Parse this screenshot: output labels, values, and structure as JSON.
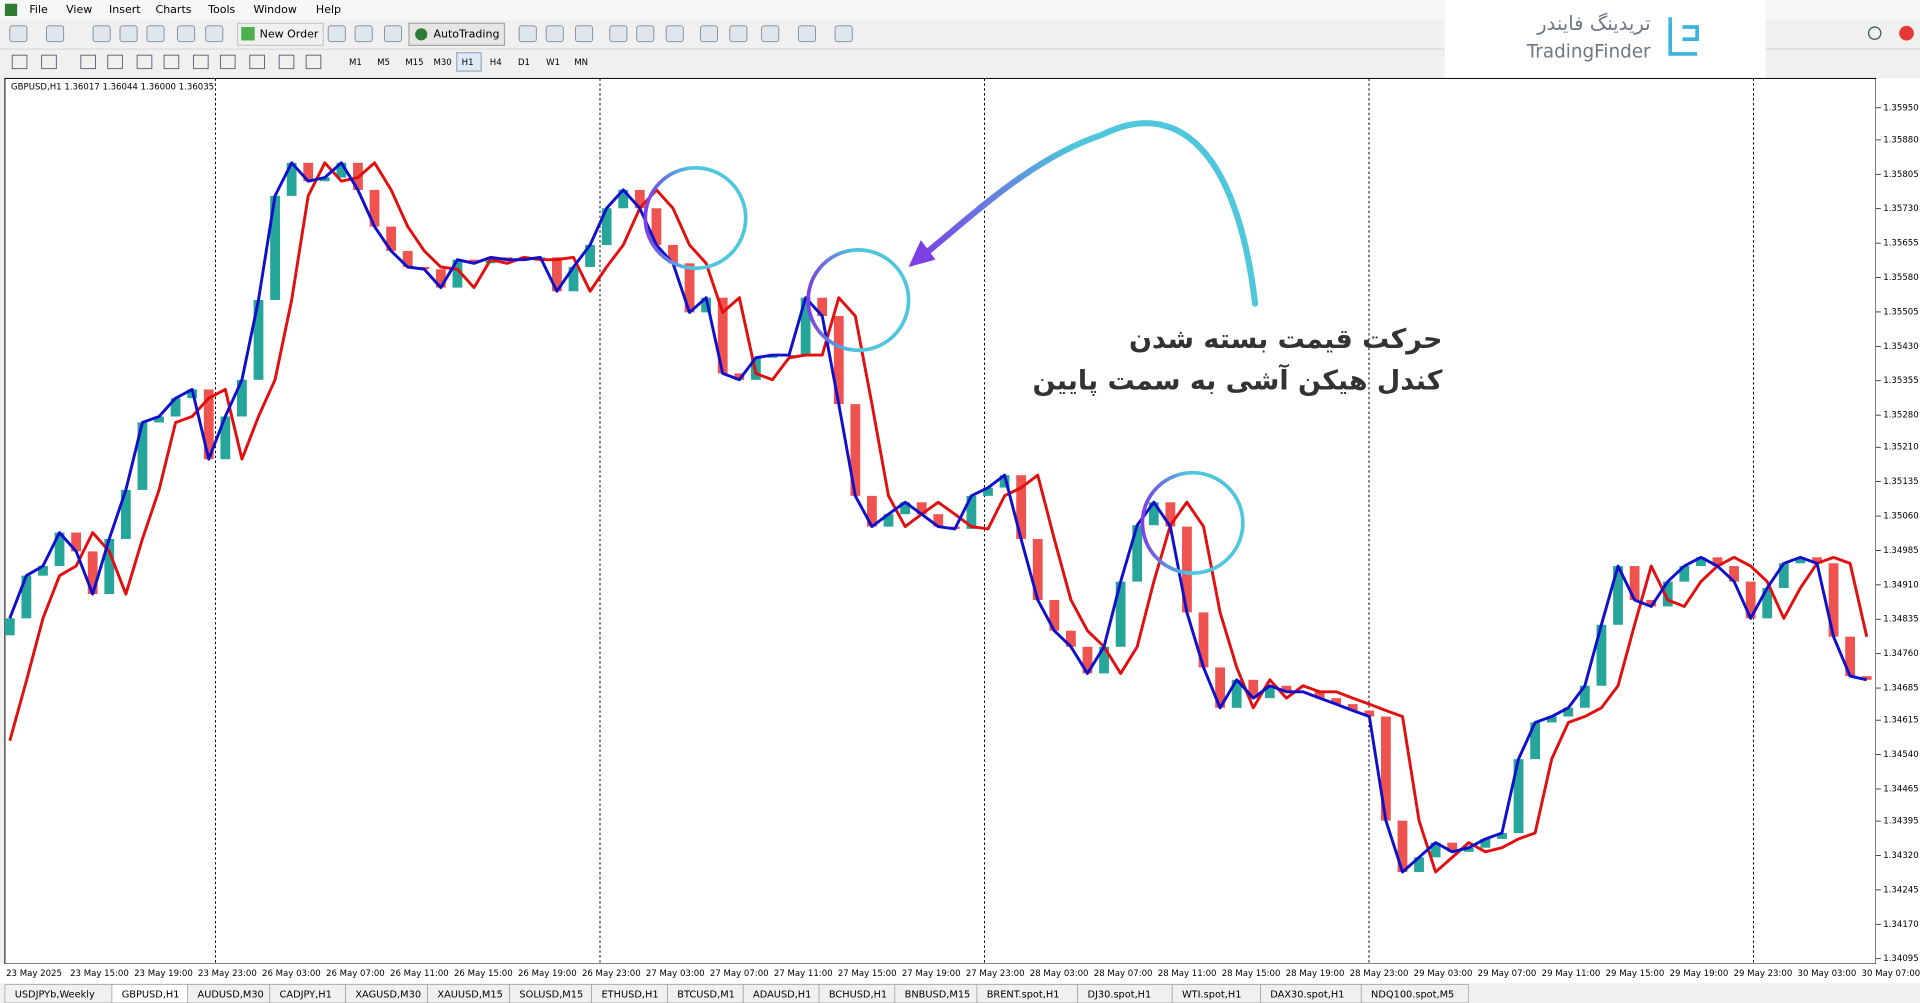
{
  "menu": [
    "File",
    "View",
    "Insert",
    "Charts",
    "Tools",
    "Window",
    "Help"
  ],
  "toolbar": {
    "new_order": "New Order",
    "auto_trading": "AutoTrading"
  },
  "timeframes": [
    "M1",
    "M5",
    "M15",
    "M30",
    "H1",
    "H4",
    "D1",
    "W1",
    "MN"
  ],
  "logo": {
    "persian": "تریدینگ فایندر",
    "latin": "TradingFinder"
  },
  "annotation": [
    "حرکت قیمت بسته شدن",
    "کندل هیکن آشی به سمت پایین"
  ],
  "tabs": [
    "USDJPYb,Weekly",
    "GBPUSD,H1",
    "AUDUSD,M30",
    "CADJPY,H1",
    "XAGUSD,M30",
    "XAUUSD,M15",
    "SOLUSD,M15",
    "ETHUSD,H1",
    "BTCUSD,M1",
    "ADAUSD,H1",
    "BCHUSD,H1",
    "BNBUSD,M15",
    "BRENT.spot,H1",
    "DJ30.spot,H1",
    "WTI.spot,H1",
    "DAX30.spot,H1",
    "NDQ100.spot,M5"
  ],
  "active_tab": "GBPUSD,H1",
  "chart_data": {
    "type": "candlestick",
    "title": "GBPUSD,H1  1.36017 1.36044 1.36000 1.36035",
    "time_labels": [
      "23 May 2025",
      "23 May 15:00",
      "23 May 19:00",
      "23 May 23:00",
      "26 May 03:00",
      "26 May 07:00",
      "26 May 11:00",
      "26 May 15:00",
      "26 May 19:00",
      "26 May 23:00",
      "27 May 03:00",
      "27 May 07:00",
      "27 May 11:00",
      "27 May 15:00",
      "27 May 19:00",
      "27 May 23:00",
      "28 May 03:00",
      "28 May 07:00",
      "28 May 11:00",
      "28 May 15:00",
      "28 May 19:00",
      "28 May 23:00",
      "29 May 03:00",
      "29 May 07:00",
      "29 May 11:00",
      "29 May 15:00",
      "29 May 19:00",
      "29 May 23:00",
      "30 May 03:00",
      "30 May 07:00"
    ],
    "up_color": "#26a69a",
    "down_color": "#ef5350",
    "close_line_color": "#1010cc",
    "ma_color": "#e01010",
    "ylim": [
      1.34084,
      1.36014
    ],
    "yticks": [
      {
        "value": 1.3595,
        "label": "1.35950"
      },
      {
        "value": 1.3588,
        "label": "1.35880"
      },
      1.35805,
      {
        "value": 1.3573,
        "label": "1.35730"
      },
      1.35655,
      {
        "value": 1.3558,
        "label": "1.35580"
      },
      1.35505,
      {
        "value": 1.3543,
        "label": "1.35430"
      },
      1.35355,
      {
        "value": 1.3528,
        "label": "1.35280"
      },
      {
        "value": 1.3521,
        "label": "1.35210"
      },
      1.35135,
      {
        "value": 1.3506,
        "label": "1.35060"
      },
      1.34985,
      {
        "value": 1.3491,
        "label": "1.34910"
      },
      1.34835,
      {
        "value": 1.3476,
        "label": "1.34760"
      },
      1.34685,
      1.34615,
      {
        "value": 1.3454,
        "label": "1.34540"
      },
      1.34465,
      1.34395,
      {
        "value": 1.3432,
        "label": "1.34320"
      },
      1.34245,
      {
        "value": 1.3417,
        "label": "1.34170"
      },
      1.34095
    ],
    "open": [
      1.348,
      1.34837,
      1.3493,
      1.34951,
      1.35024,
      1.34983,
      1.3489,
      1.3501,
      1.35117,
      1.35264,
      1.35277,
      1.35317,
      1.35336,
      1.35184,
      1.35277,
      1.35357,
      1.35531,
      1.35758,
      1.3583,
      1.3579,
      1.35798,
      1.3583,
      1.35771,
      1.35691,
      1.35638,
      1.35603,
      1.35598,
      1.35558,
      1.35619,
      1.35611,
      1.35624,
      1.35619,
      1.35619,
      1.35624,
      1.3555,
      1.35603,
      1.35651,
      1.35731,
      1.35771,
      1.35731,
      1.35651,
      1.35611,
      1.35504,
      1.35536,
      1.35371,
      1.35357,
      1.35405,
      1.35411,
      1.35411,
      1.35536,
      1.35496,
      1.35304,
      1.35104,
      1.35037,
      1.35064,
      1.3509,
      1.35064,
      1.35037,
      1.35032,
      1.35104,
      1.35122,
      1.35149,
      1.3501,
      1.34877,
      1.3481,
      1.34775,
      1.34717,
      1.34775,
      1.34917,
      1.3504,
      1.3509,
      1.35037,
      1.3485,
      1.3473,
      1.34642,
      1.34703,
      1.34663,
      1.3469,
      1.34677,
      1.34677,
      1.34663,
      1.3465,
      1.34636,
      1.34623,
      1.34396,
      1.34284,
      1.34316,
      1.34348,
      1.34328,
      1.34337,
      1.34356,
      1.34369,
      1.3453,
      1.3461,
      1.34623,
      1.34642,
      1.3469,
      1.34823,
      1.34951,
      1.34877,
      1.34863,
      1.34917,
      1.34951,
      1.3497,
      1.34951,
      1.34917,
      1.34837,
      1.34903,
      1.34957,
      1.3497,
      1.34957,
      1.34797,
      1.34711
    ],
    "close": [
      1.34837,
      1.3493,
      1.34951,
      1.35024,
      1.34983,
      1.3489,
      1.3501,
      1.35117,
      1.35264,
      1.35277,
      1.35317,
      1.35336,
      1.35184,
      1.35277,
      1.35357,
      1.35531,
      1.35758,
      1.3583,
      1.3579,
      1.35798,
      1.3583,
      1.35771,
      1.35691,
      1.35638,
      1.35603,
      1.35598,
      1.35558,
      1.35619,
      1.35611,
      1.35624,
      1.35619,
      1.35619,
      1.35624,
      1.3555,
      1.35603,
      1.35651,
      1.35731,
      1.35771,
      1.35731,
      1.35651,
      1.35611,
      1.35504,
      1.35536,
      1.35371,
      1.35357,
      1.35405,
      1.35411,
      1.35411,
      1.35536,
      1.35496,
      1.35304,
      1.35104,
      1.35037,
      1.35064,
      1.3509,
      1.35064,
      1.35037,
      1.35032,
      1.35104,
      1.35122,
      1.35149,
      1.3501,
      1.34877,
      1.3481,
      1.34775,
      1.34717,
      1.34775,
      1.34917,
      1.3504,
      1.3509,
      1.35037,
      1.3485,
      1.3473,
      1.34642,
      1.34703,
      1.34663,
      1.3469,
      1.34677,
      1.34677,
      1.34663,
      1.3465,
      1.34636,
      1.34623,
      1.34396,
      1.34284,
      1.34316,
      1.34348,
      1.34328,
      1.34337,
      1.34356,
      1.34369,
      1.3453,
      1.3461,
      1.34623,
      1.34642,
      1.3469,
      1.34823,
      1.34951,
      1.34877,
      1.34863,
      1.34917,
      1.34951,
      1.3497,
      1.34951,
      1.34917,
      1.34837,
      1.34903,
      1.34957,
      1.3497,
      1.34957,
      1.34797,
      1.34711,
      1.34703
    ],
    "ma": [
      1.3457,
      1.347,
      1.34837,
      1.3493,
      1.34951,
      1.35024,
      1.34983,
      1.3489,
      1.3501,
      1.35117,
      1.35264,
      1.35277,
      1.35317,
      1.35336,
      1.35184,
      1.35277,
      1.35357,
      1.35531,
      1.35758,
      1.3583,
      1.3579,
      1.35798,
      1.3583,
      1.35771,
      1.35691,
      1.35638,
      1.35603,
      1.35598,
      1.35558,
      1.35619,
      1.35611,
      1.35624,
      1.35619,
      1.35619,
      1.35624,
      1.3555,
      1.35603,
      1.35651,
      1.35731,
      1.35771,
      1.35731,
      1.35651,
      1.35611,
      1.35504,
      1.35536,
      1.35371,
      1.35357,
      1.35405,
      1.35411,
      1.35411,
      1.35536,
      1.35496,
      1.35304,
      1.35104,
      1.35037,
      1.35064,
      1.3509,
      1.35064,
      1.35037,
      1.35032,
      1.35104,
      1.35122,
      1.35149,
      1.3501,
      1.34877,
      1.3481,
      1.34775,
      1.34717,
      1.34775,
      1.34917,
      1.3504,
      1.3509,
      1.35037,
      1.3485,
      1.3473,
      1.34642,
      1.34703,
      1.34663,
      1.3469,
      1.34677,
      1.34677,
      1.34663,
      1.3465,
      1.34636,
      1.34623,
      1.34396,
      1.34284,
      1.34316,
      1.34348,
      1.34328,
      1.34337,
      1.34356,
      1.34369,
      1.3453,
      1.3461,
      1.34623,
      1.34642,
      1.3469,
      1.34823,
      1.34951,
      1.34877,
      1.34863,
      1.34917,
      1.34951,
      1.3497,
      1.34951,
      1.34917,
      1.34837,
      1.34903,
      1.34957,
      1.3497,
      1.34957,
      1.34797
    ]
  }
}
